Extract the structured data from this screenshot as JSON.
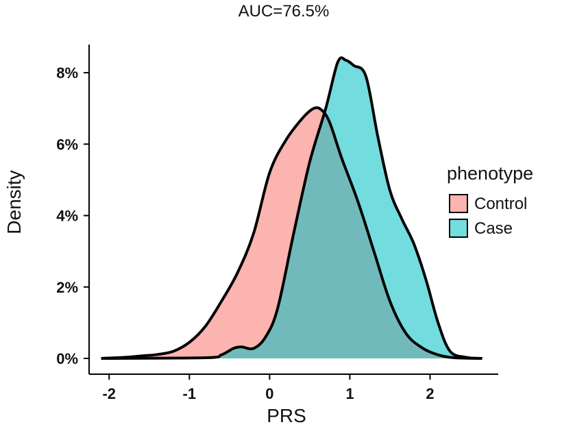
{
  "chart_data": {
    "type": "area",
    "title": "AUC=76.5%",
    "xlabel": "PRS",
    "ylabel": "Density",
    "xlim": [
      -2.25,
      2.85
    ],
    "ylim": [
      0,
      8.75
    ],
    "x_ticks": [
      -2,
      -1,
      0,
      1,
      2
    ],
    "x_tick_labels": [
      "-2",
      "-1",
      "0",
      "1",
      "2"
    ],
    "y_ticks": [
      0,
      2,
      4,
      6,
      8
    ],
    "y_tick_labels": [
      "0%",
      "2%",
      "4%",
      "6%",
      "8%"
    ],
    "grid": false,
    "legend": {
      "title": "phenotype",
      "placement": "right",
      "entries": [
        "Control",
        "Case"
      ]
    },
    "series": [
      {
        "name": "Control",
        "color": "#F8766D",
        "points": [
          [
            -2.1,
            0.0
          ],
          [
            -1.8,
            0.03
          ],
          [
            -1.6,
            0.07
          ],
          [
            -1.4,
            0.11
          ],
          [
            -1.2,
            0.2
          ],
          [
            -1.0,
            0.45
          ],
          [
            -0.8,
            0.9
          ],
          [
            -0.6,
            1.6
          ],
          [
            -0.4,
            2.4
          ],
          [
            -0.2,
            3.5
          ],
          [
            0.0,
            5.2
          ],
          [
            0.2,
            6.1
          ],
          [
            0.4,
            6.7
          ],
          [
            0.55,
            7.0
          ],
          [
            0.65,
            6.95
          ],
          [
            0.75,
            6.6
          ],
          [
            0.9,
            5.6
          ],
          [
            1.1,
            4.4
          ],
          [
            1.3,
            3.0
          ],
          [
            1.5,
            1.6
          ],
          [
            1.7,
            0.7
          ],
          [
            1.9,
            0.3
          ],
          [
            2.1,
            0.1
          ],
          [
            2.3,
            0.02
          ],
          [
            2.65,
            0.0
          ]
        ]
      },
      {
        "name": "Case",
        "color": "#00BFC4",
        "points": [
          [
            -2.1,
            0.0
          ],
          [
            -0.8,
            0.02
          ],
          [
            -0.6,
            0.1
          ],
          [
            -0.45,
            0.28
          ],
          [
            -0.35,
            0.32
          ],
          [
            -0.2,
            0.28
          ],
          [
            -0.05,
            0.6
          ],
          [
            0.1,
            1.4
          ],
          [
            0.3,
            3.5
          ],
          [
            0.5,
            5.5
          ],
          [
            0.7,
            7.0
          ],
          [
            0.85,
            8.3
          ],
          [
            0.95,
            8.35
          ],
          [
            1.05,
            8.2
          ],
          [
            1.2,
            7.9
          ],
          [
            1.35,
            6.2
          ],
          [
            1.5,
            4.7
          ],
          [
            1.65,
            3.9
          ],
          [
            1.8,
            3.2
          ],
          [
            1.95,
            2.2
          ],
          [
            2.1,
            1.0
          ],
          [
            2.25,
            0.2
          ],
          [
            2.45,
            0.03
          ],
          [
            2.65,
            0.0
          ]
        ]
      }
    ]
  }
}
